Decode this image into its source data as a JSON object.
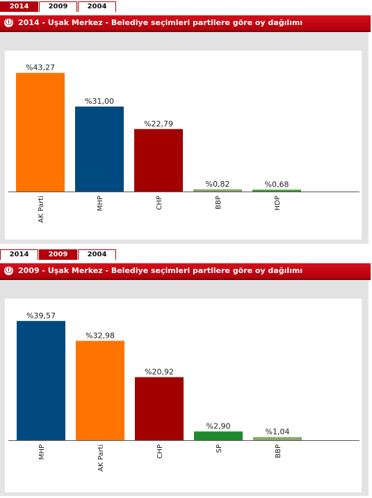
{
  "panels": [
    {
      "tabs": [
        "2014",
        "2009",
        "2004"
      ],
      "active_tab": 0,
      "title": "2014 - Uşak Merkez - Belediye seçimleri partilere göre oy dağılımı",
      "info_icon": "ⓘ",
      "colors": {
        "header": "#b3000b"
      }
    },
    {
      "tabs": [
        "2014",
        "2009",
        "2004"
      ],
      "active_tab": 1,
      "title": "2009 - Uşak Merkez - Belediye seçimleri partilere göre oy dağılımı",
      "info_icon": "ⓘ",
      "colors": {
        "header": "#b3000b"
      }
    }
  ],
  "chart_data": [
    {
      "type": "bar",
      "categories": [
        "AK Parti",
        "MHP",
        "CHP",
        "BBP",
        "HDP"
      ],
      "values": [
        43.27,
        31.0,
        22.79,
        0.82,
        0.68
      ],
      "data_labels": [
        "%43,27",
        "%31,00",
        "%22,79",
        "%0,82",
        "%0,68"
      ],
      "colors": [
        "#ff7300",
        "#004a7f",
        "#a30000",
        "#88a86b",
        "#3f9a34"
      ],
      "ylim": [
        0,
        47
      ]
    },
    {
      "type": "bar",
      "categories": [
        "MHP",
        "AK Parti",
        "CHP",
        "SP",
        "BBP"
      ],
      "values": [
        39.57,
        32.98,
        20.92,
        2.9,
        1.04
      ],
      "data_labels": [
        "%39,57",
        "%32,98",
        "%20,92",
        "%2,90",
        "%1,04"
      ],
      "colors": [
        "#004a7f",
        "#ff7300",
        "#a30000",
        "#1e8a2e",
        "#88a86b"
      ],
      "ylim": [
        0,
        43
      ]
    }
  ]
}
